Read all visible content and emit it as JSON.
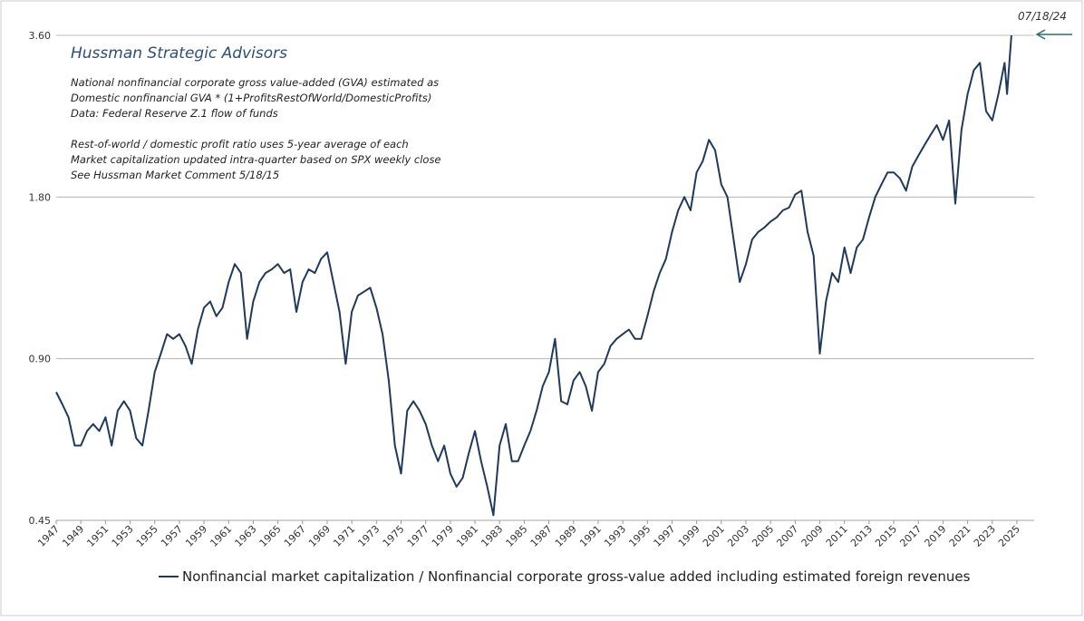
{
  "chart_data": {
    "type": "line",
    "title": "Hussman Strategic Advisors",
    "notes": [
      "National nonfinancial corporate gross value-added (GVA) estimated as",
      "Domestic nonfinancial GVA * (1+ProfitsRestOfWorld/DomesticProfits)",
      "Data: Federal Reserve Z.1 flow of funds",
      "Rest-of-world / domestic profit ratio uses 5-year average of each",
      "Market capitalization updated intra-quarter based on SPX weekly close",
      "See Hussman Market Comment 5/18/15"
    ],
    "annotation": "07/18/24",
    "log_scale": true,
    "grid": true,
    "legend": "bottom",
    "xlim": [
      1947,
      2026.4
    ],
    "xticks": [
      1947,
      1949,
      1951,
      1953,
      1955,
      1957,
      1959,
      1961,
      1963,
      1965,
      1967,
      1969,
      1971,
      1973,
      1975,
      1977,
      1979,
      1981,
      1983,
      1985,
      1987,
      1989,
      1991,
      1993,
      1995,
      1997,
      1999,
      2001,
      2003,
      2005,
      2007,
      2009,
      2011,
      2013,
      2015,
      2017,
      2019,
      2021,
      2023,
      2025
    ],
    "ylim": [
      0.45,
      3.6
    ],
    "yticks": [
      {
        "value": 0.45,
        "label": "0.45"
      },
      {
        "value": 0.9,
        "label": "0.90"
      },
      {
        "value": 1.8,
        "label": "1.80"
      },
      {
        "value": 3.6,
        "label": "3.60"
      }
    ],
    "x": [
      1947,
      1947.5,
      1948,
      1948.5,
      1949,
      1949.5,
      1950,
      1950.5,
      1951,
      1951.5,
      1952,
      1952.5,
      1953,
      1953.5,
      1954,
      1954.5,
      1955,
      1955.5,
      1956,
      1956.5,
      1957,
      1957.5,
      1958,
      1958.5,
      1959,
      1959.5,
      1960,
      1960.5,
      1961,
      1961.5,
      1962,
      1962.5,
      1963,
      1963.5,
      1964,
      1964.5,
      1965,
      1965.5,
      1966,
      1966.5,
      1967,
      1967.5,
      1968,
      1968.5,
      1969,
      1969.5,
      1970,
      1970.5,
      1971,
      1971.5,
      1972,
      1972.5,
      1973,
      1973.5,
      1974,
      1974.5,
      1975,
      1975.5,
      1976,
      1976.5,
      1977,
      1977.5,
      1978,
      1978.5,
      1979,
      1979.5,
      1980,
      1980.5,
      1981,
      1981.5,
      1982,
      1982.5,
      1983,
      1983.5,
      1984,
      1984.5,
      1985,
      1985.5,
      1986,
      1986.5,
      1987,
      1987.5,
      1988,
      1988.5,
      1989,
      1989.5,
      1990,
      1990.5,
      1991,
      1991.5,
      1992,
      1992.5,
      1993,
      1993.5,
      1994,
      1994.5,
      1995,
      1995.5,
      1996,
      1996.5,
      1997,
      1997.5,
      1998,
      1998.5,
      1999,
      1999.5,
      2000,
      2000.5,
      2001,
      2001.5,
      2002,
      2002.5,
      2003,
      2003.5,
      2004,
      2004.5,
      2005,
      2005.5,
      2006,
      2006.5,
      2007,
      2007.5,
      2008,
      2008.5,
      2009,
      2009.5,
      2010,
      2010.5,
      2011,
      2011.5,
      2012,
      2012.5,
      2013,
      2013.5,
      2014,
      2014.5,
      2015,
      2015.5,
      2016,
      2016.5,
      2017,
      2017.5,
      2018,
      2018.5,
      2019,
      2019.5,
      2020,
      2020.5,
      2021,
      2021.5,
      2022,
      2022.5,
      2023,
      2023.5,
      2024,
      2024.2,
      2024.55
    ],
    "series": [
      {
        "name": "Nonfinancial market capitalization / Nonfinancial corporate gross-value added including estimated foreign revenues",
        "color": "#1f3a5a",
        "values": [
          0.78,
          0.74,
          0.7,
          0.62,
          0.62,
          0.66,
          0.68,
          0.66,
          0.7,
          0.62,
          0.72,
          0.75,
          0.72,
          0.64,
          0.62,
          0.72,
          0.85,
          0.92,
          1.0,
          0.98,
          1.0,
          0.95,
          0.88,
          1.02,
          1.12,
          1.15,
          1.08,
          1.12,
          1.25,
          1.35,
          1.3,
          0.98,
          1.15,
          1.25,
          1.3,
          1.32,
          1.35,
          1.3,
          1.32,
          1.1,
          1.25,
          1.32,
          1.3,
          1.38,
          1.42,
          1.25,
          1.1,
          0.88,
          1.1,
          1.18,
          1.2,
          1.22,
          1.12,
          1.0,
          0.82,
          0.62,
          0.55,
          0.72,
          0.75,
          0.72,
          0.68,
          0.62,
          0.58,
          0.62,
          0.55,
          0.52,
          0.54,
          0.6,
          0.66,
          0.58,
          0.52,
          0.46,
          0.62,
          0.68,
          0.58,
          0.58,
          0.62,
          0.66,
          0.72,
          0.8,
          0.85,
          0.98,
          0.75,
          0.74,
          0.82,
          0.85,
          0.8,
          0.72,
          0.85,
          0.88,
          0.95,
          0.98,
          1.0,
          1.02,
          0.98,
          0.98,
          1.08,
          1.2,
          1.3,
          1.38,
          1.55,
          1.7,
          1.8,
          1.7,
          2.0,
          2.1,
          2.3,
          2.2,
          1.9,
          1.8,
          1.5,
          1.25,
          1.35,
          1.5,
          1.55,
          1.58,
          1.62,
          1.65,
          1.7,
          1.72,
          1.82,
          1.85,
          1.55,
          1.4,
          0.92,
          1.15,
          1.3,
          1.25,
          1.45,
          1.3,
          1.45,
          1.5,
          1.65,
          1.8,
          1.9,
          2.0,
          2.0,
          1.95,
          1.85,
          2.05,
          2.15,
          2.25,
          2.35,
          2.45,
          2.3,
          2.5,
          1.75,
          2.4,
          2.8,
          3.1,
          3.2,
          2.6,
          2.5,
          2.8,
          3.2,
          2.8,
          3.6
        ]
      }
    ]
  }
}
